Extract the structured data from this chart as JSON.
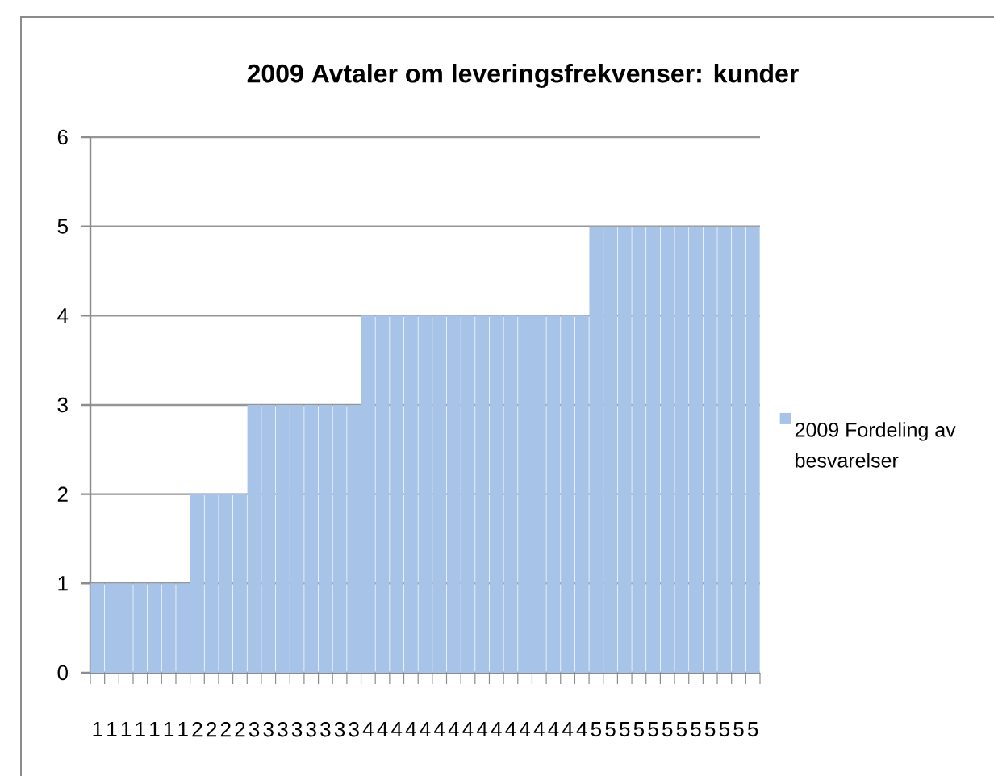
{
  "chart_data": {
    "type": "bar",
    "title": "2009 Avtaler om leveringsfrekvenser: kunder",
    "categories": [
      "1",
      "1",
      "1",
      "1",
      "1",
      "1",
      "1",
      "2",
      "2",
      "2",
      "2",
      "3",
      "3",
      "3",
      "3",
      "3",
      "3",
      "3",
      "3",
      "4",
      "4",
      "4",
      "4",
      "4",
      "4",
      "4",
      "4",
      "4",
      "4",
      "4",
      "4",
      "4",
      "4",
      "4",
      "4",
      "5",
      "5",
      "5",
      "5",
      "5",
      "5",
      "5",
      "5",
      "5",
      "5",
      "5",
      "5"
    ],
    "series": [
      {
        "name": "2009 Fordeling av besvarelser",
        "color": "#a7c3e8",
        "values": [
          1,
          1,
          1,
          1,
          1,
          1,
          1,
          2,
          2,
          2,
          2,
          3,
          3,
          3,
          3,
          3,
          3,
          3,
          3,
          4,
          4,
          4,
          4,
          4,
          4,
          4,
          4,
          4,
          4,
          4,
          4,
          4,
          4,
          4,
          4,
          5,
          5,
          5,
          5,
          5,
          5,
          5,
          5,
          5,
          5,
          5,
          5
        ]
      }
    ],
    "ylim": [
      0,
      6
    ],
    "yticks": [
      0,
      1,
      2,
      3,
      4,
      5,
      6
    ],
    "grid": "y",
    "legend": "right"
  }
}
